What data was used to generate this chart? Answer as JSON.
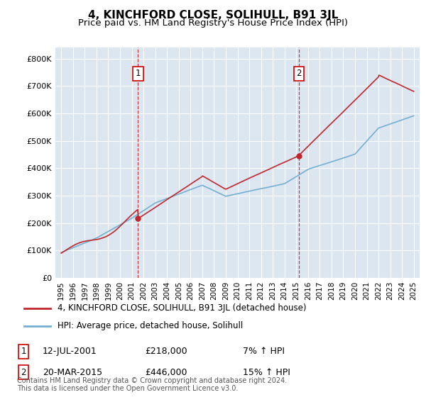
{
  "title": "4, KINCHFORD CLOSE, SOLIHULL, B91 3JL",
  "subtitle": "Price paid vs. HM Land Registry's House Price Index (HPI)",
  "ylim": [
    0,
    840000
  ],
  "yticks": [
    0,
    100000,
    200000,
    300000,
    400000,
    500000,
    600000,
    700000,
    800000
  ],
  "ytick_labels": [
    "£0",
    "£100K",
    "£200K",
    "£300K",
    "£400K",
    "£500K",
    "£600K",
    "£700K",
    "£800K"
  ],
  "xlim_start": 1994.5,
  "xlim_end": 2025.5,
  "xticks": [
    1995,
    1996,
    1997,
    1998,
    1999,
    2000,
    2001,
    2002,
    2003,
    2004,
    2005,
    2006,
    2007,
    2008,
    2009,
    2010,
    2011,
    2012,
    2013,
    2014,
    2015,
    2016,
    2017,
    2018,
    2019,
    2020,
    2021,
    2022,
    2023,
    2024,
    2025
  ],
  "fig_bg_color": "#ffffff",
  "plot_bg_color": "#dce6f1",
  "grid_color": "#ffffff",
  "hpi_line_color": "#74afd3",
  "price_line_color": "#c0272d",
  "marker1_x": 2001.53,
  "marker1_y": 218000,
  "marker2_x": 2015.22,
  "marker2_y": 446000,
  "marker_box_color": "#cc0000",
  "legend_house_label": "4, KINCHFORD CLOSE, SOLIHULL, B91 3JL (detached house)",
  "legend_hpi_label": "HPI: Average price, detached house, Solihull",
  "annotation1_date": "12-JUL-2001",
  "annotation1_price": "£218,000",
  "annotation1_hpi": "7% ↑ HPI",
  "annotation2_date": "20-MAR-2015",
  "annotation2_price": "£446,000",
  "annotation2_hpi": "15% ↑ HPI",
  "footnote": "Contains HM Land Registry data © Crown copyright and database right 2024.\nThis data is licensed under the Open Government Licence v3.0.",
  "title_fontsize": 11,
  "subtitle_fontsize": 9.5,
  "tick_fontsize": 8,
  "anno_fontsize": 9,
  "legend_fontsize": 8.5,
  "footnote_fontsize": 7,
  "figsize": [
    6.0,
    5.6
  ],
  "dpi": 100
}
